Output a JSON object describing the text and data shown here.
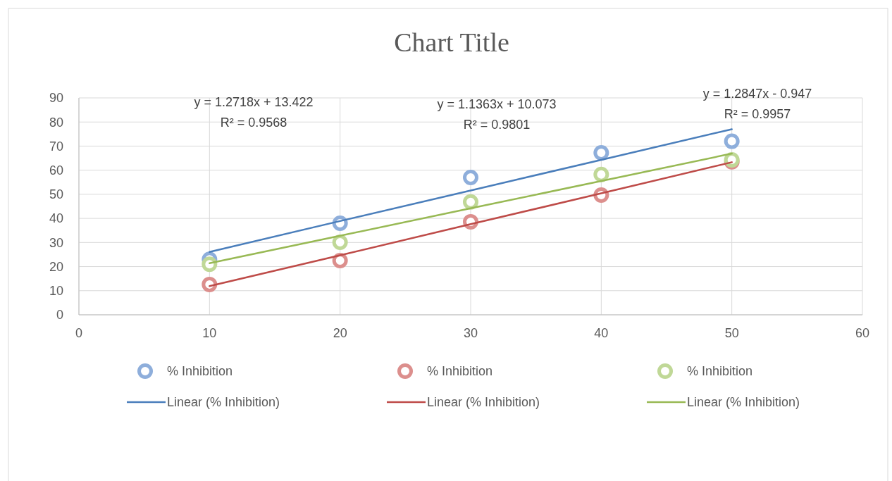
{
  "chart_data": {
    "type": "scatter",
    "title": "Chart Title",
    "x": [
      10,
      20,
      30,
      40,
      50
    ],
    "series": [
      {
        "name": "% Inhibition",
        "color": "#8eaedb",
        "values": [
          23,
          38,
          57,
          67.2,
          72
        ]
      },
      {
        "name": "% Inhibition",
        "color": "#dc8f8d",
        "values": [
          12.6,
          22.5,
          38.6,
          49.7,
          63.5
        ]
      },
      {
        "name": "% Inhibition",
        "color": "#c0d897",
        "values": [
          21,
          30.1,
          46.8,
          58.2,
          64.3
        ]
      },
      {
        "name": "Linear (% Inhibition)",
        "type": "line",
        "marker": "none",
        "color": "#4a7ebb",
        "values": [
          26.1,
          38.9,
          51.6,
          64.3,
          77.0
        ]
      },
      {
        "name": "Linear (% Inhibition)",
        "type": "line",
        "marker": "none",
        "color": "#be4b48",
        "values": [
          11.9,
          24.7,
          37.6,
          50.4,
          63.3
        ]
      },
      {
        "name": "Linear (% Inhibition)",
        "type": "line",
        "marker": "none",
        "color": "#98b954",
        "values": [
          21.4,
          32.8,
          44.2,
          55.5,
          66.9
        ]
      }
    ],
    "xlim": [
      0,
      60
    ],
    "xticks": [
      0,
      10,
      20,
      30,
      40,
      50,
      60
    ],
    "ylim": [
      0,
      90
    ],
    "yticks": [
      0,
      10,
      20,
      30,
      40,
      50,
      60,
      70,
      80,
      90
    ],
    "grid": true,
    "legend": "bottom",
    "marker": "circle",
    "line_style": "solid",
    "annotations": [
      "y = 1.2718x + 13.422\nR² = 0.9568",
      "y = 1.1363x + 10.073\nR² = 0.9801",
      "y = 1.2847x - 0.947\nR² = 0.9957"
    ]
  }
}
